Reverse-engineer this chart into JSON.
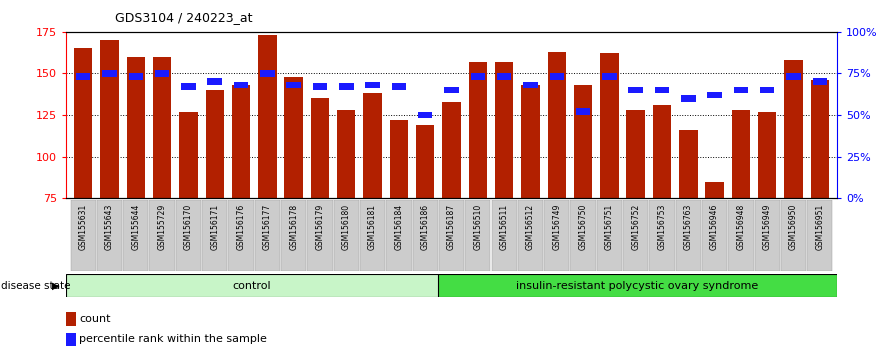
{
  "title": "GDS3104 / 240223_at",
  "samples": [
    "GSM155631",
    "GSM155643",
    "GSM155644",
    "GSM155729",
    "GSM156170",
    "GSM156171",
    "GSM156176",
    "GSM156177",
    "GSM156178",
    "GSM156179",
    "GSM156180",
    "GSM156181",
    "GSM156184",
    "GSM156186",
    "GSM156187",
    "GSM156510",
    "GSM156511",
    "GSM156512",
    "GSM156749",
    "GSM156750",
    "GSM156751",
    "GSM156752",
    "GSM156753",
    "GSM156763",
    "GSM156946",
    "GSM156948",
    "GSM156949",
    "GSM156950",
    "GSM156951"
  ],
  "bar_values": [
    165,
    170,
    160,
    160,
    127,
    140,
    143,
    173,
    148,
    135,
    128,
    138,
    122,
    119,
    133,
    157,
    157,
    143,
    163,
    143,
    162,
    128,
    131,
    116,
    85,
    128,
    127,
    158,
    146
  ],
  "percentile_values": [
    73,
    75,
    73,
    75,
    67,
    70,
    68,
    75,
    68,
    67,
    67,
    68,
    67,
    50,
    65,
    73,
    73,
    68,
    73,
    52,
    73,
    65,
    65,
    60,
    62,
    65,
    65,
    73,
    70
  ],
  "control_count": 14,
  "disease_label": "insulin-resistant polycystic ovary syndrome",
  "control_label": "control",
  "disease_state_label": "disease state",
  "bar_color": "#B22000",
  "percentile_color": "#1a1aff",
  "ylim_left": [
    75,
    175
  ],
  "yticks_left": [
    75,
    100,
    125,
    150,
    175
  ],
  "yticks_right": [
    0,
    25,
    50,
    75,
    100
  ],
  "right_axis_labels": [
    "0%",
    "25%",
    "50%",
    "75%",
    "100%"
  ],
  "legend_count_label": "count",
  "legend_percentile_label": "percentile rank within the sample",
  "control_bg": "#c8f5c8",
  "disease_bg": "#44dd44",
  "label_bg": "#cccccc"
}
